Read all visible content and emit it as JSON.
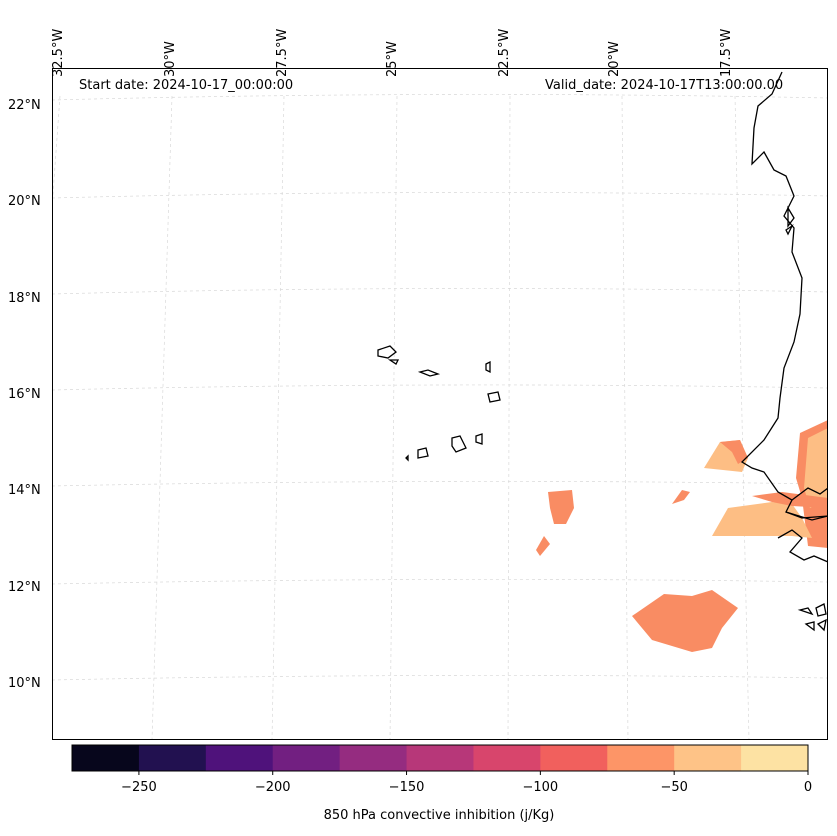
{
  "header": {
    "start_date": "Start date: 2024-10-17_00:00:00",
    "valid_date": "Valid_date: 2024-10-17T13:00:00.00"
  },
  "axes": {
    "longitude_labels": [
      "32.5°W",
      "30°W",
      "27.5°W",
      "25°W",
      "22.5°W",
      "20°W",
      "17.5°W"
    ],
    "latitude_labels": [
      "22°N",
      "20°N",
      "18°N",
      "16°N",
      "14°N",
      "12°N",
      "10°N"
    ]
  },
  "colorbar": {
    "title": "850 hPa convective inhibition (j/Kg)",
    "tick_labels": [
      "−250",
      "−200",
      "−150",
      "−100",
      "−50",
      "0"
    ],
    "range": [
      -275,
      0
    ],
    "colors": [
      "#07061c",
      "#221150",
      "#4f127b",
      "#721f81",
      "#952c80",
      "#b73779",
      "#d8456c",
      "#f1605d",
      "#fd9567",
      "#fec387",
      "#fde2a3"
    ]
  },
  "colors": {
    "land_outline": "#000000",
    "grid": "#d0d0d0",
    "cin_mid": "#f98c63",
    "cin_light": "#fdbe84"
  }
}
